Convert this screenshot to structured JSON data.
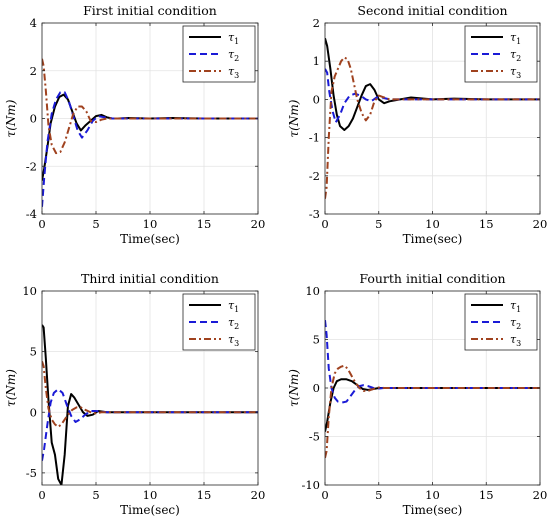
{
  "chart_data": [
    {
      "type": "line",
      "title": "First initial condition",
      "xlabel": "Time(sec)",
      "ylabel": "τ(Nm)",
      "xlim": [
        0,
        20
      ],
      "ylim": [
        -4,
        4
      ],
      "xticks": [
        "0",
        "5",
        "10",
        "15",
        "20"
      ],
      "yticks": [
        "-4",
        "-2",
        "0",
        "2",
        "4"
      ],
      "legend_position": "top-right",
      "grid": true,
      "series": [
        {
          "name": "τ1",
          "color": "#000000",
          "style": "solid",
          "x": [
            0,
            0.2,
            0.5,
            0.8,
            1.2,
            1.6,
            2.0,
            2.4,
            2.8,
            3.2,
            3.6,
            4.0,
            4.5,
            5.0,
            5.5,
            6.0,
            6.5,
            7,
            8,
            10,
            12,
            15,
            20
          ],
          "y": [
            -2.6,
            -2.1,
            -1.2,
            -0.2,
            0.5,
            0.9,
            1.0,
            0.8,
            0.3,
            -0.2,
            -0.5,
            -0.3,
            -0.1,
            0.1,
            0.15,
            0.05,
            0.0,
            0.0,
            0.02,
            0.0,
            0.02,
            0.0,
            0.0
          ]
        },
        {
          "name": "τ2",
          "color": "#1a1ad6",
          "style": "dashed",
          "x": [
            0,
            0.2,
            0.5,
            0.9,
            1.3,
            1.7,
            2.1,
            2.5,
            2.9,
            3.3,
            3.7,
            4.2,
            4.7,
            5.2,
            5.8,
            6.5,
            7,
            8,
            10,
            12,
            15,
            20
          ],
          "y": [
            -3.7,
            -2.5,
            -1.0,
            0.2,
            0.8,
            1.1,
            1.1,
            0.7,
            0.1,
            -0.5,
            -0.8,
            -0.5,
            -0.1,
            0.1,
            0.05,
            0.0,
            0.0,
            0.0,
            0.0,
            0.0,
            0.0,
            0.0
          ]
        },
        {
          "name": "τ3",
          "color": "#a0421f",
          "style": "dashdot",
          "x": [
            0,
            0.15,
            0.35,
            0.6,
            0.9,
            1.3,
            1.7,
            2.1,
            2.5,
            2.9,
            3.3,
            3.7,
            4.1,
            4.5,
            5.0,
            5.5,
            6.0,
            7,
            8,
            10,
            12,
            15,
            20
          ],
          "y": [
            2.5,
            2.2,
            1.2,
            -0.3,
            -1.1,
            -1.45,
            -1.4,
            -1.0,
            -0.4,
            0.2,
            0.5,
            0.5,
            0.3,
            -0.1,
            -0.15,
            -0.05,
            0.0,
            0.0,
            0.0,
            0.0,
            0.0,
            0.0,
            0.0
          ]
        }
      ]
    },
    {
      "type": "line",
      "title": "Second initial condition",
      "xlabel": "Time(sec)",
      "ylabel": "τ(Nm)",
      "xlim": [
        0,
        20
      ],
      "ylim": [
        -3,
        2
      ],
      "xticks": [
        "0",
        "5",
        "10",
        "15",
        "20"
      ],
      "yticks": [
        "-3",
        "-2",
        "-1",
        "0",
        "1",
        "2"
      ],
      "legend_position": "top-right",
      "grid": true,
      "series": [
        {
          "name": "τ1",
          "color": "#000000",
          "style": "solid",
          "x": [
            0,
            0.2,
            0.5,
            0.8,
            1.1,
            1.4,
            1.8,
            2.2,
            2.6,
            3.0,
            3.4,
            3.8,
            4.2,
            4.6,
            5.0,
            5.5,
            6.0,
            7,
            8,
            10,
            12,
            15,
            20
          ],
          "y": [
            1.6,
            1.4,
            0.8,
            0.1,
            -0.4,
            -0.7,
            -0.8,
            -0.7,
            -0.5,
            -0.2,
            0.1,
            0.35,
            0.4,
            0.25,
            0.0,
            -0.1,
            -0.05,
            0.0,
            0.05,
            0.0,
            0.02,
            0.0,
            0.0
          ]
        },
        {
          "name": "τ2",
          "color": "#1a1ad6",
          "style": "dashed",
          "x": [
            0,
            0.2,
            0.4,
            0.7,
            1.0,
            1.4,
            1.8,
            2.3,
            2.8,
            3.3,
            3.8,
            4.3,
            4.8,
            5.3,
            6.0,
            7,
            8,
            10,
            12,
            15,
            20
          ],
          "y": [
            0.8,
            0.7,
            0.2,
            -0.3,
            -0.6,
            -0.4,
            -0.1,
            0.1,
            0.15,
            0.1,
            0.0,
            -0.05,
            0.05,
            0.05,
            0.0,
            0.0,
            0.0,
            0.0,
            0.0,
            0.0,
            0.0
          ]
        },
        {
          "name": "τ3",
          "color": "#a0421f",
          "style": "dashdot",
          "x": [
            0,
            0.15,
            0.35,
            0.6,
            0.9,
            1.2,
            1.5,
            1.8,
            2.1,
            2.4,
            2.7,
            3.0,
            3.4,
            3.8,
            4.2,
            4.6,
            5.0,
            5.5,
            6.0,
            7,
            8,
            10,
            12,
            15,
            20
          ],
          "y": [
            -2.6,
            -2.3,
            -1.0,
            0.2,
            0.6,
            0.8,
            1.0,
            1.1,
            1.05,
            0.8,
            0.4,
            0.0,
            -0.35,
            -0.55,
            -0.4,
            -0.05,
            0.1,
            0.05,
            0.0,
            0.0,
            0.0,
            0.0,
            0.0,
            0.0,
            0.0
          ]
        }
      ]
    },
    {
      "type": "line",
      "title": "Third initial condition",
      "xlabel": "Time(sec)",
      "ylabel": "τ(Nm)",
      "xlim": [
        0,
        20
      ],
      "ylim": [
        -6,
        10
      ],
      "xticks": [
        "0",
        "5",
        "10",
        "15",
        "20"
      ],
      "yticks": [
        "-5",
        "0",
        "5",
        "10"
      ],
      "legend_position": "top-right",
      "grid": true,
      "series": [
        {
          "name": "τ1",
          "color": "#000000",
          "style": "solid",
          "x": [
            0,
            0.15,
            0.35,
            0.6,
            0.9,
            1.2,
            1.5,
            1.8,
            2.1,
            2.4,
            2.7,
            3.0,
            3.4,
            3.8,
            4.2,
            4.7,
            5.2,
            6.0,
            7,
            8,
            10,
            12,
            15,
            20
          ],
          "y": [
            7.2,
            7.0,
            4.5,
            1.0,
            -2.5,
            -3.5,
            -5.5,
            -6.0,
            -3.5,
            0.5,
            1.5,
            1.2,
            0.6,
            0.0,
            -0.3,
            -0.2,
            0.1,
            0.0,
            0.0,
            0.0,
            0.0,
            0.0,
            0.0,
            0.0
          ]
        },
        {
          "name": "τ2",
          "color": "#1a1ad6",
          "style": "dashed",
          "x": [
            0,
            0.2,
            0.5,
            0.8,
            1.1,
            1.5,
            1.9,
            2.3,
            2.7,
            3.1,
            3.5,
            4.0,
            4.5,
            5.0,
            5.5,
            6.0,
            7,
            8,
            10,
            12,
            15,
            20
          ],
          "y": [
            -4.0,
            -3.0,
            -1.0,
            0.8,
            1.6,
            1.9,
            1.6,
            0.6,
            -0.3,
            -0.8,
            -0.6,
            -0.2,
            0.1,
            0.1,
            0.05,
            0.0,
            0.0,
            0.0,
            0.0,
            0.0,
            0.0,
            0.0
          ]
        },
        {
          "name": "τ3",
          "color": "#a0421f",
          "style": "dashdot",
          "x": [
            0,
            0.15,
            0.35,
            0.6,
            0.9,
            1.2,
            1.5,
            1.8,
            2.1,
            2.4,
            2.8,
            3.2,
            3.6,
            4.0,
            4.5,
            5.0,
            5.5,
            6.0,
            7,
            8,
            10,
            12,
            15,
            20
          ],
          "y": [
            4.2,
            3.8,
            2.0,
            0.3,
            -0.6,
            -1.0,
            -1.2,
            -1.0,
            -0.6,
            -0.2,
            0.2,
            0.4,
            0.4,
            0.2,
            0.0,
            -0.1,
            0.0,
            0.0,
            0.0,
            0.0,
            0.0,
            0.0,
            0.0,
            0.0
          ]
        }
      ]
    },
    {
      "type": "line",
      "title": "Fourth initial condition",
      "xlabel": "Time(sec)",
      "ylabel": "τ(Nm)",
      "xlim": [
        0,
        20
      ],
      "ylim": [
        -10,
        10
      ],
      "xticks": [
        "0",
        "5",
        "10",
        "15",
        "20"
      ],
      "yticks": [
        "-10",
        "-5",
        "0",
        "5",
        "10"
      ],
      "legend_position": "top-right",
      "grid": true,
      "series": [
        {
          "name": "τ1",
          "color": "#000000",
          "style": "solid",
          "x": [
            0,
            0.2,
            0.5,
            0.8,
            1.1,
            1.5,
            2.0,
            2.5,
            3.0,
            3.5,
            4.0,
            4.5,
            5.0,
            5.5,
            6.0,
            7,
            8,
            10,
            12,
            15,
            20
          ],
          "y": [
            -4.5,
            -3.5,
            -1.5,
            0.0,
            0.7,
            0.9,
            0.9,
            0.7,
            0.3,
            -0.1,
            -0.2,
            -0.1,
            0.0,
            0.0,
            0.0,
            0.0,
            0.0,
            0.0,
            0.0,
            0.0,
            0.0
          ]
        },
        {
          "name": "τ2",
          "color": "#1a1ad6",
          "style": "dashed",
          "x": [
            0,
            0.15,
            0.35,
            0.6,
            0.9,
            1.2,
            1.6,
            2.0,
            2.4,
            2.8,
            3.2,
            3.6,
            4.0,
            4.5,
            5.0,
            5.5,
            6.0,
            7,
            8,
            10,
            12,
            15,
            20
          ],
          "y": [
            7.0,
            5.5,
            2.0,
            0.0,
            -1.0,
            -1.4,
            -1.5,
            -1.4,
            -0.8,
            -0.2,
            0.2,
            0.3,
            0.2,
            0.0,
            -0.05,
            0.0,
            0.0,
            0.0,
            0.0,
            0.0,
            0.0,
            0.0,
            0.0
          ]
        },
        {
          "name": "τ3",
          "color": "#a0421f",
          "style": "dashdot",
          "x": [
            0,
            0.15,
            0.35,
            0.6,
            0.9,
            1.2,
            1.5,
            1.8,
            2.1,
            2.4,
            2.8,
            3.2,
            3.6,
            4.0,
            4.5,
            5.0,
            5.5,
            6.0,
            7,
            8,
            10,
            12,
            15,
            20
          ],
          "y": [
            -7.2,
            -6.5,
            -3.0,
            0.0,
            1.5,
            2.0,
            2.2,
            2.3,
            2.0,
            1.4,
            0.6,
            0.0,
            -0.3,
            -0.3,
            -0.1,
            0.05,
            0.0,
            0.0,
            0.0,
            0.0,
            0.0,
            0.0,
            0.0,
            0.0
          ]
        }
      ]
    }
  ]
}
